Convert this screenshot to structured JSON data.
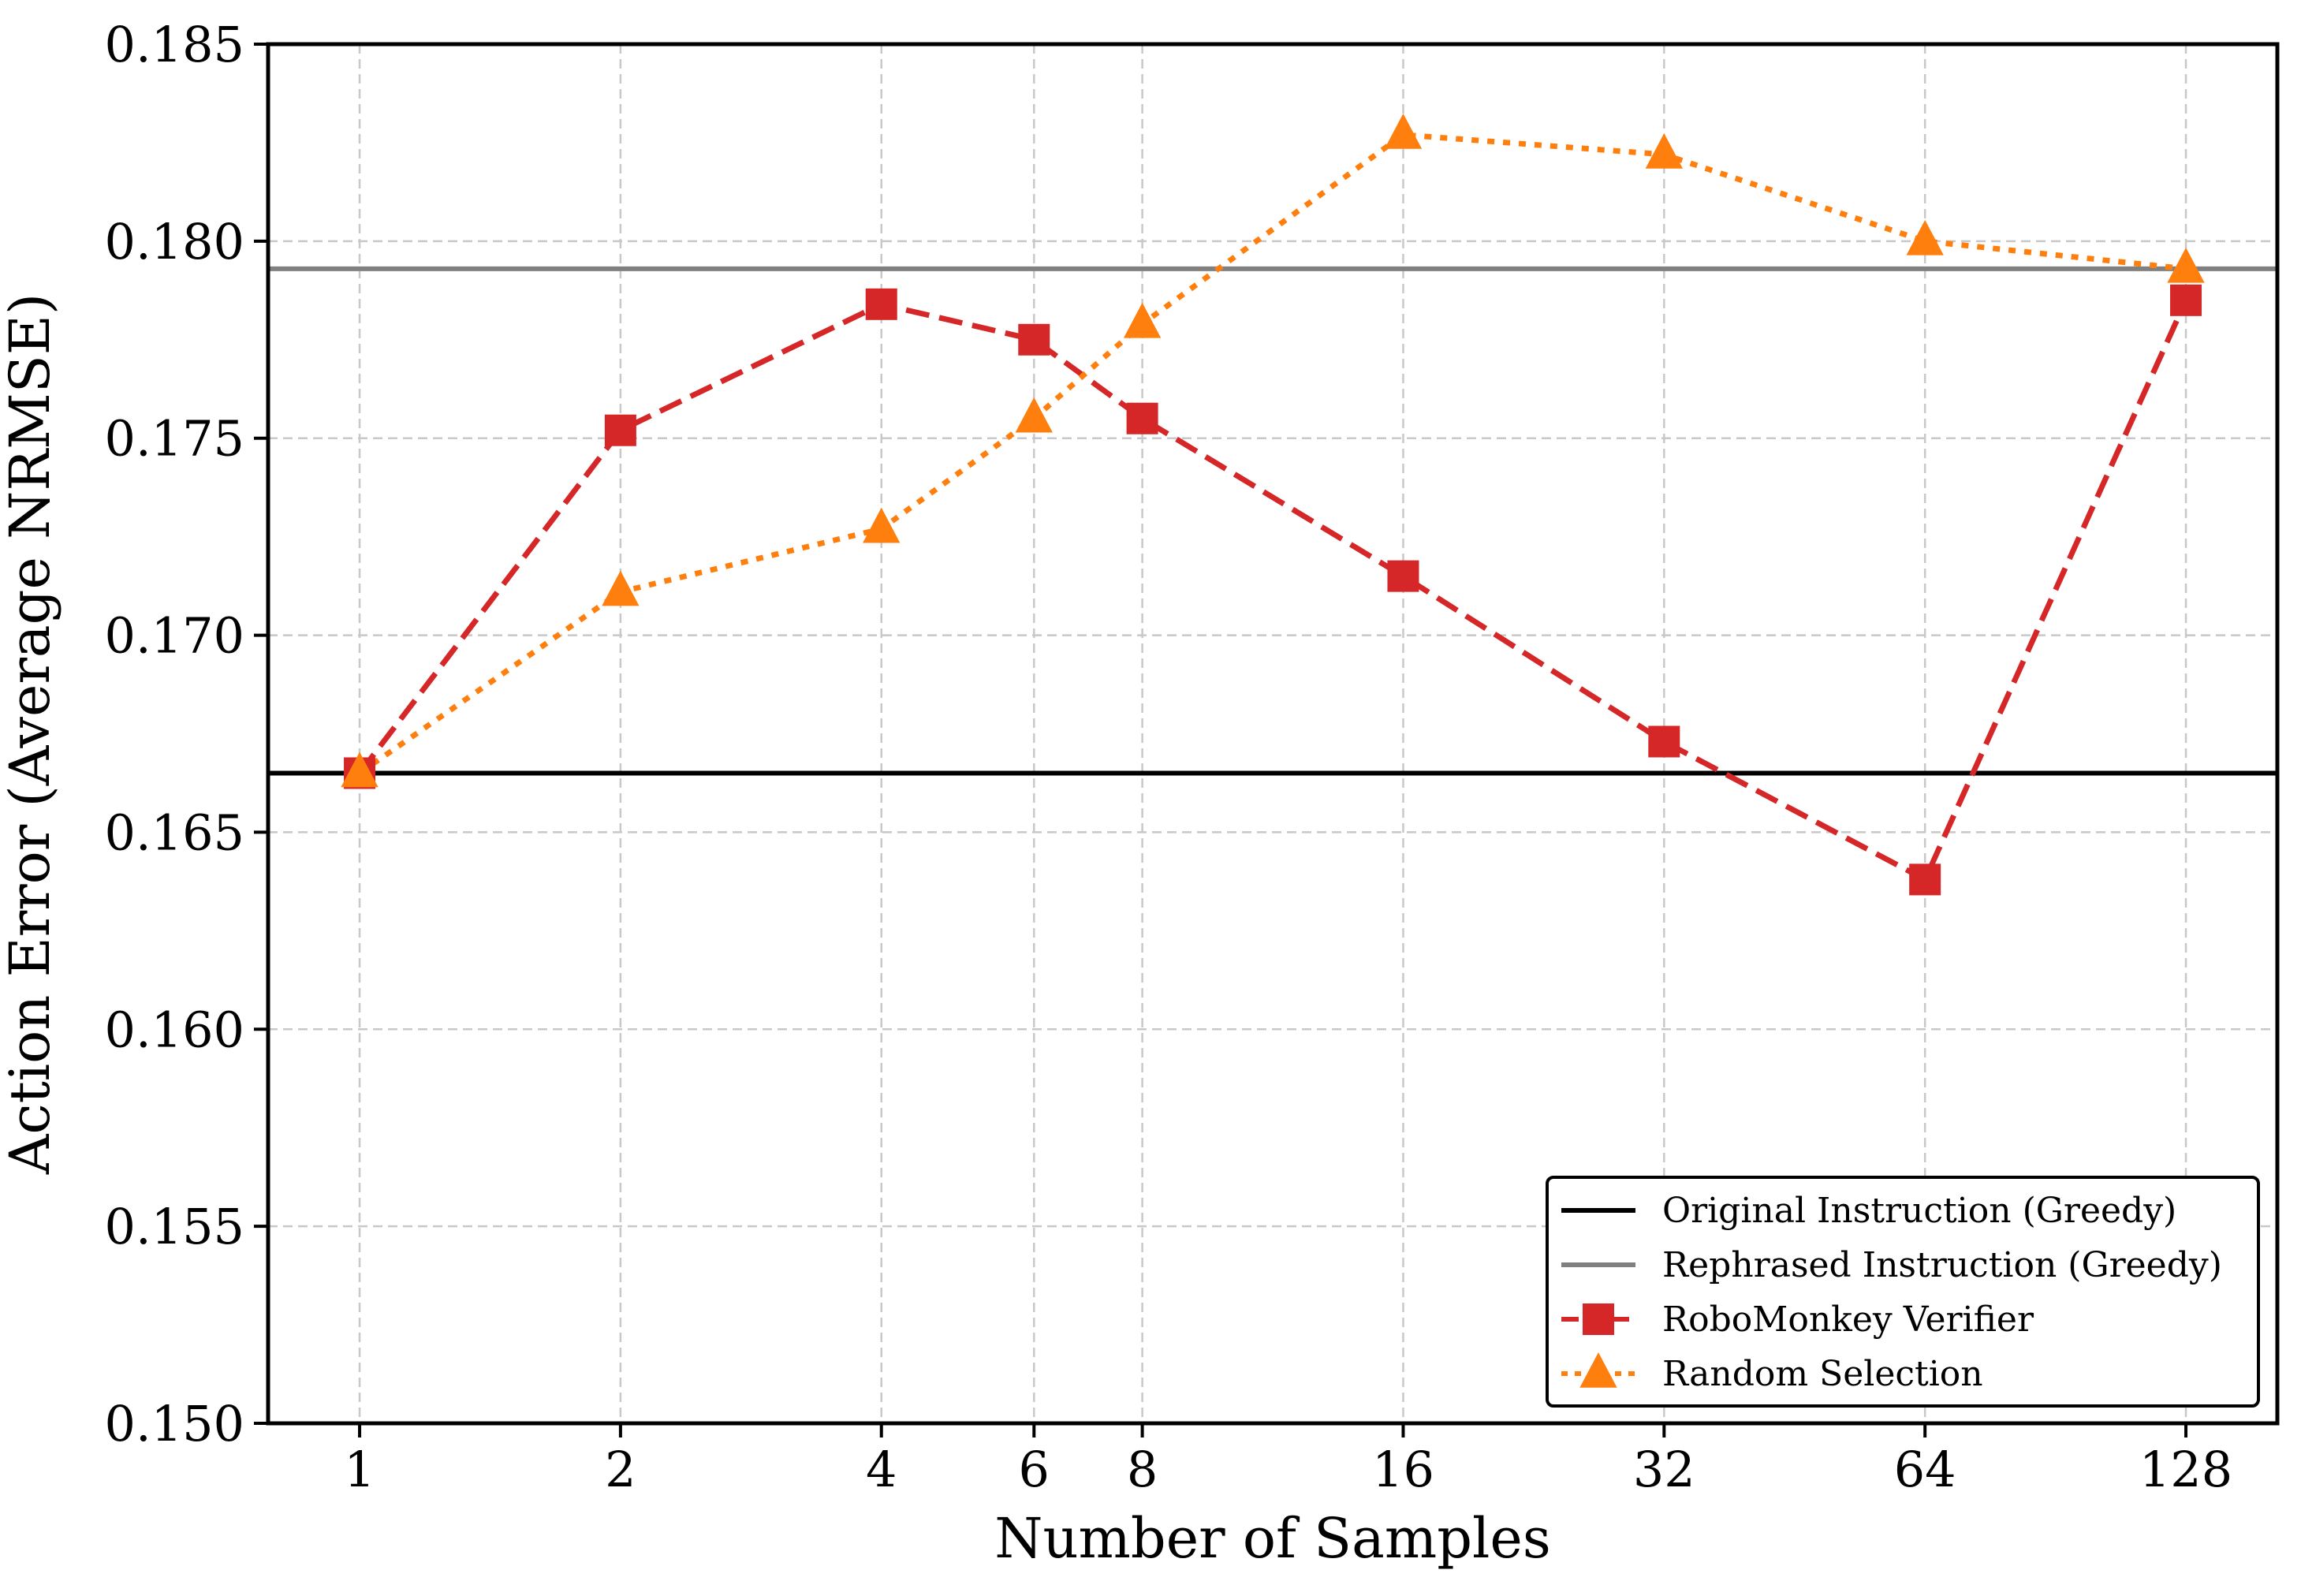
{
  "chart_data": {
    "type": "line",
    "title": "",
    "xlabel": "Number of Samples",
    "ylabel": "Action Error (Average NRMSE)",
    "x_scale": "log2",
    "x_ticks": [
      1,
      2,
      4,
      6,
      8,
      16,
      32,
      64,
      128
    ],
    "x_tick_labels": [
      "1",
      "2",
      "4",
      "6",
      "8",
      "16",
      "32",
      "64",
      "128"
    ],
    "xlim": [
      0.7842,
      163.2
    ],
    "ylim": [
      0.15,
      0.185
    ],
    "y_ticks": [
      0.15,
      0.155,
      0.16,
      0.165,
      0.17,
      0.175,
      0.18,
      0.185
    ],
    "y_tick_labels": [
      "0.150",
      "0.155",
      "0.160",
      "0.165",
      "0.170",
      "0.175",
      "0.180",
      "0.185"
    ],
    "grid": true,
    "legend_position": "lower-right",
    "reference_lines": [
      {
        "name": "Original Instruction (Greedy)",
        "y": 0.1665,
        "color": "#000000"
      },
      {
        "name": "Rephrased Instruction (Greedy)",
        "y": 0.1793,
        "color": "#808080"
      }
    ],
    "series": [
      {
        "name": "RoboMonkey Verifier",
        "color": "#d62728",
        "line_style": "dashed",
        "marker": "square",
        "x": [
          1,
          2,
          4,
          6,
          8,
          16,
          32,
          64,
          128
        ],
        "values": [
          0.1665,
          0.1752,
          0.1784,
          0.1775,
          0.1755,
          0.1715,
          0.1673,
          0.1638,
          0.1785
        ]
      },
      {
        "name": "Random Selection",
        "color": "#ff7f0e",
        "line_style": "dotted",
        "marker": "triangle",
        "x": [
          1,
          2,
          4,
          6,
          8,
          16,
          32,
          64,
          128
        ],
        "values": [
          0.1665,
          0.1711,
          0.1727,
          0.1755,
          0.1779,
          0.1827,
          0.1822,
          0.18,
          0.1793
        ]
      }
    ]
  }
}
